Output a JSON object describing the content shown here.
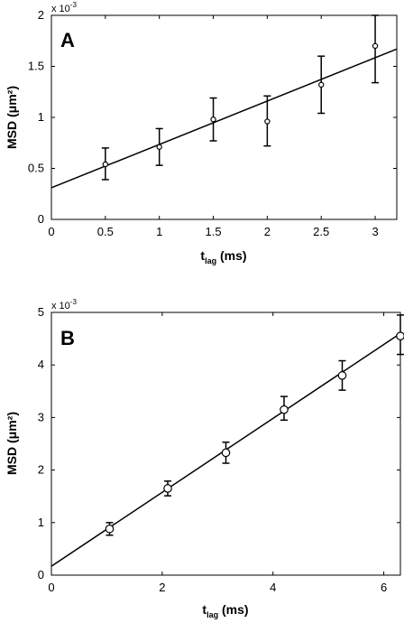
{
  "chart_data": [
    {
      "type": "scatter",
      "panel_label": "A",
      "ylabel": "MSD  (μm²)",
      "xlabel_main": "t",
      "xlabel_sub": "lag",
      "xlabel_unit": " (ms)",
      "y_multiplier_base": "x 10",
      "y_multiplier_exp": "-3",
      "xlim": [
        0,
        3.2
      ],
      "ylim": [
        0,
        2
      ],
      "xticks": [
        0,
        0.5,
        1,
        1.5,
        2,
        2.5,
        3
      ],
      "xtick_labels": [
        "0",
        "0.5",
        "1",
        "1.5",
        "2",
        "2.5",
        "3"
      ],
      "yticks": [
        0,
        0.5,
        1,
        1.5,
        2
      ],
      "ytick_labels": [
        "0",
        "0.5",
        "1",
        "1.5",
        "2"
      ],
      "x": [
        0.5,
        1.0,
        1.5,
        2.0,
        2.5,
        3.0
      ],
      "y": [
        0.54,
        0.71,
        0.98,
        0.96,
        1.32,
        1.7
      ],
      "err_low": [
        0.15,
        0.18,
        0.21,
        0.24,
        0.28,
        0.36
      ],
      "err_high": [
        0.16,
        0.18,
        0.21,
        0.25,
        0.28,
        0.3
      ],
      "fit_line": {
        "x": [
          0,
          3.2
        ],
        "y": [
          0.31,
          1.67
        ]
      },
      "grid": false
    },
    {
      "type": "scatter",
      "panel_label": "B",
      "ylabel": "MSD  (μm²)",
      "xlabel_main": "t",
      "xlabel_sub": "lag",
      "xlabel_unit": " (ms)",
      "y_multiplier_base": "x 10",
      "y_multiplier_exp": "-3",
      "xlim": [
        0,
        6.3
      ],
      "ylim": [
        0,
        5
      ],
      "xticks": [
        0,
        2,
        4,
        6
      ],
      "xtick_labels": [
        "0",
        "2",
        "4",
        "6"
      ],
      "yticks": [
        0,
        1,
        2,
        3,
        4,
        5
      ],
      "ytick_labels": [
        "0",
        "1",
        "2",
        "3",
        "4",
        "5"
      ],
      "x": [
        1.05,
        2.1,
        3.15,
        4.2,
        5.25,
        6.3
      ],
      "y": [
        0.88,
        1.65,
        2.33,
        3.15,
        3.8,
        4.55
      ],
      "err_low": [
        0.12,
        0.14,
        0.2,
        0.2,
        0.28,
        0.35
      ],
      "err_high": [
        0.12,
        0.14,
        0.2,
        0.25,
        0.28,
        0.4
      ],
      "fit_line": {
        "x": [
          0,
          6.3
        ],
        "y": [
          0.17,
          4.6
        ]
      },
      "grid": false
    }
  ]
}
